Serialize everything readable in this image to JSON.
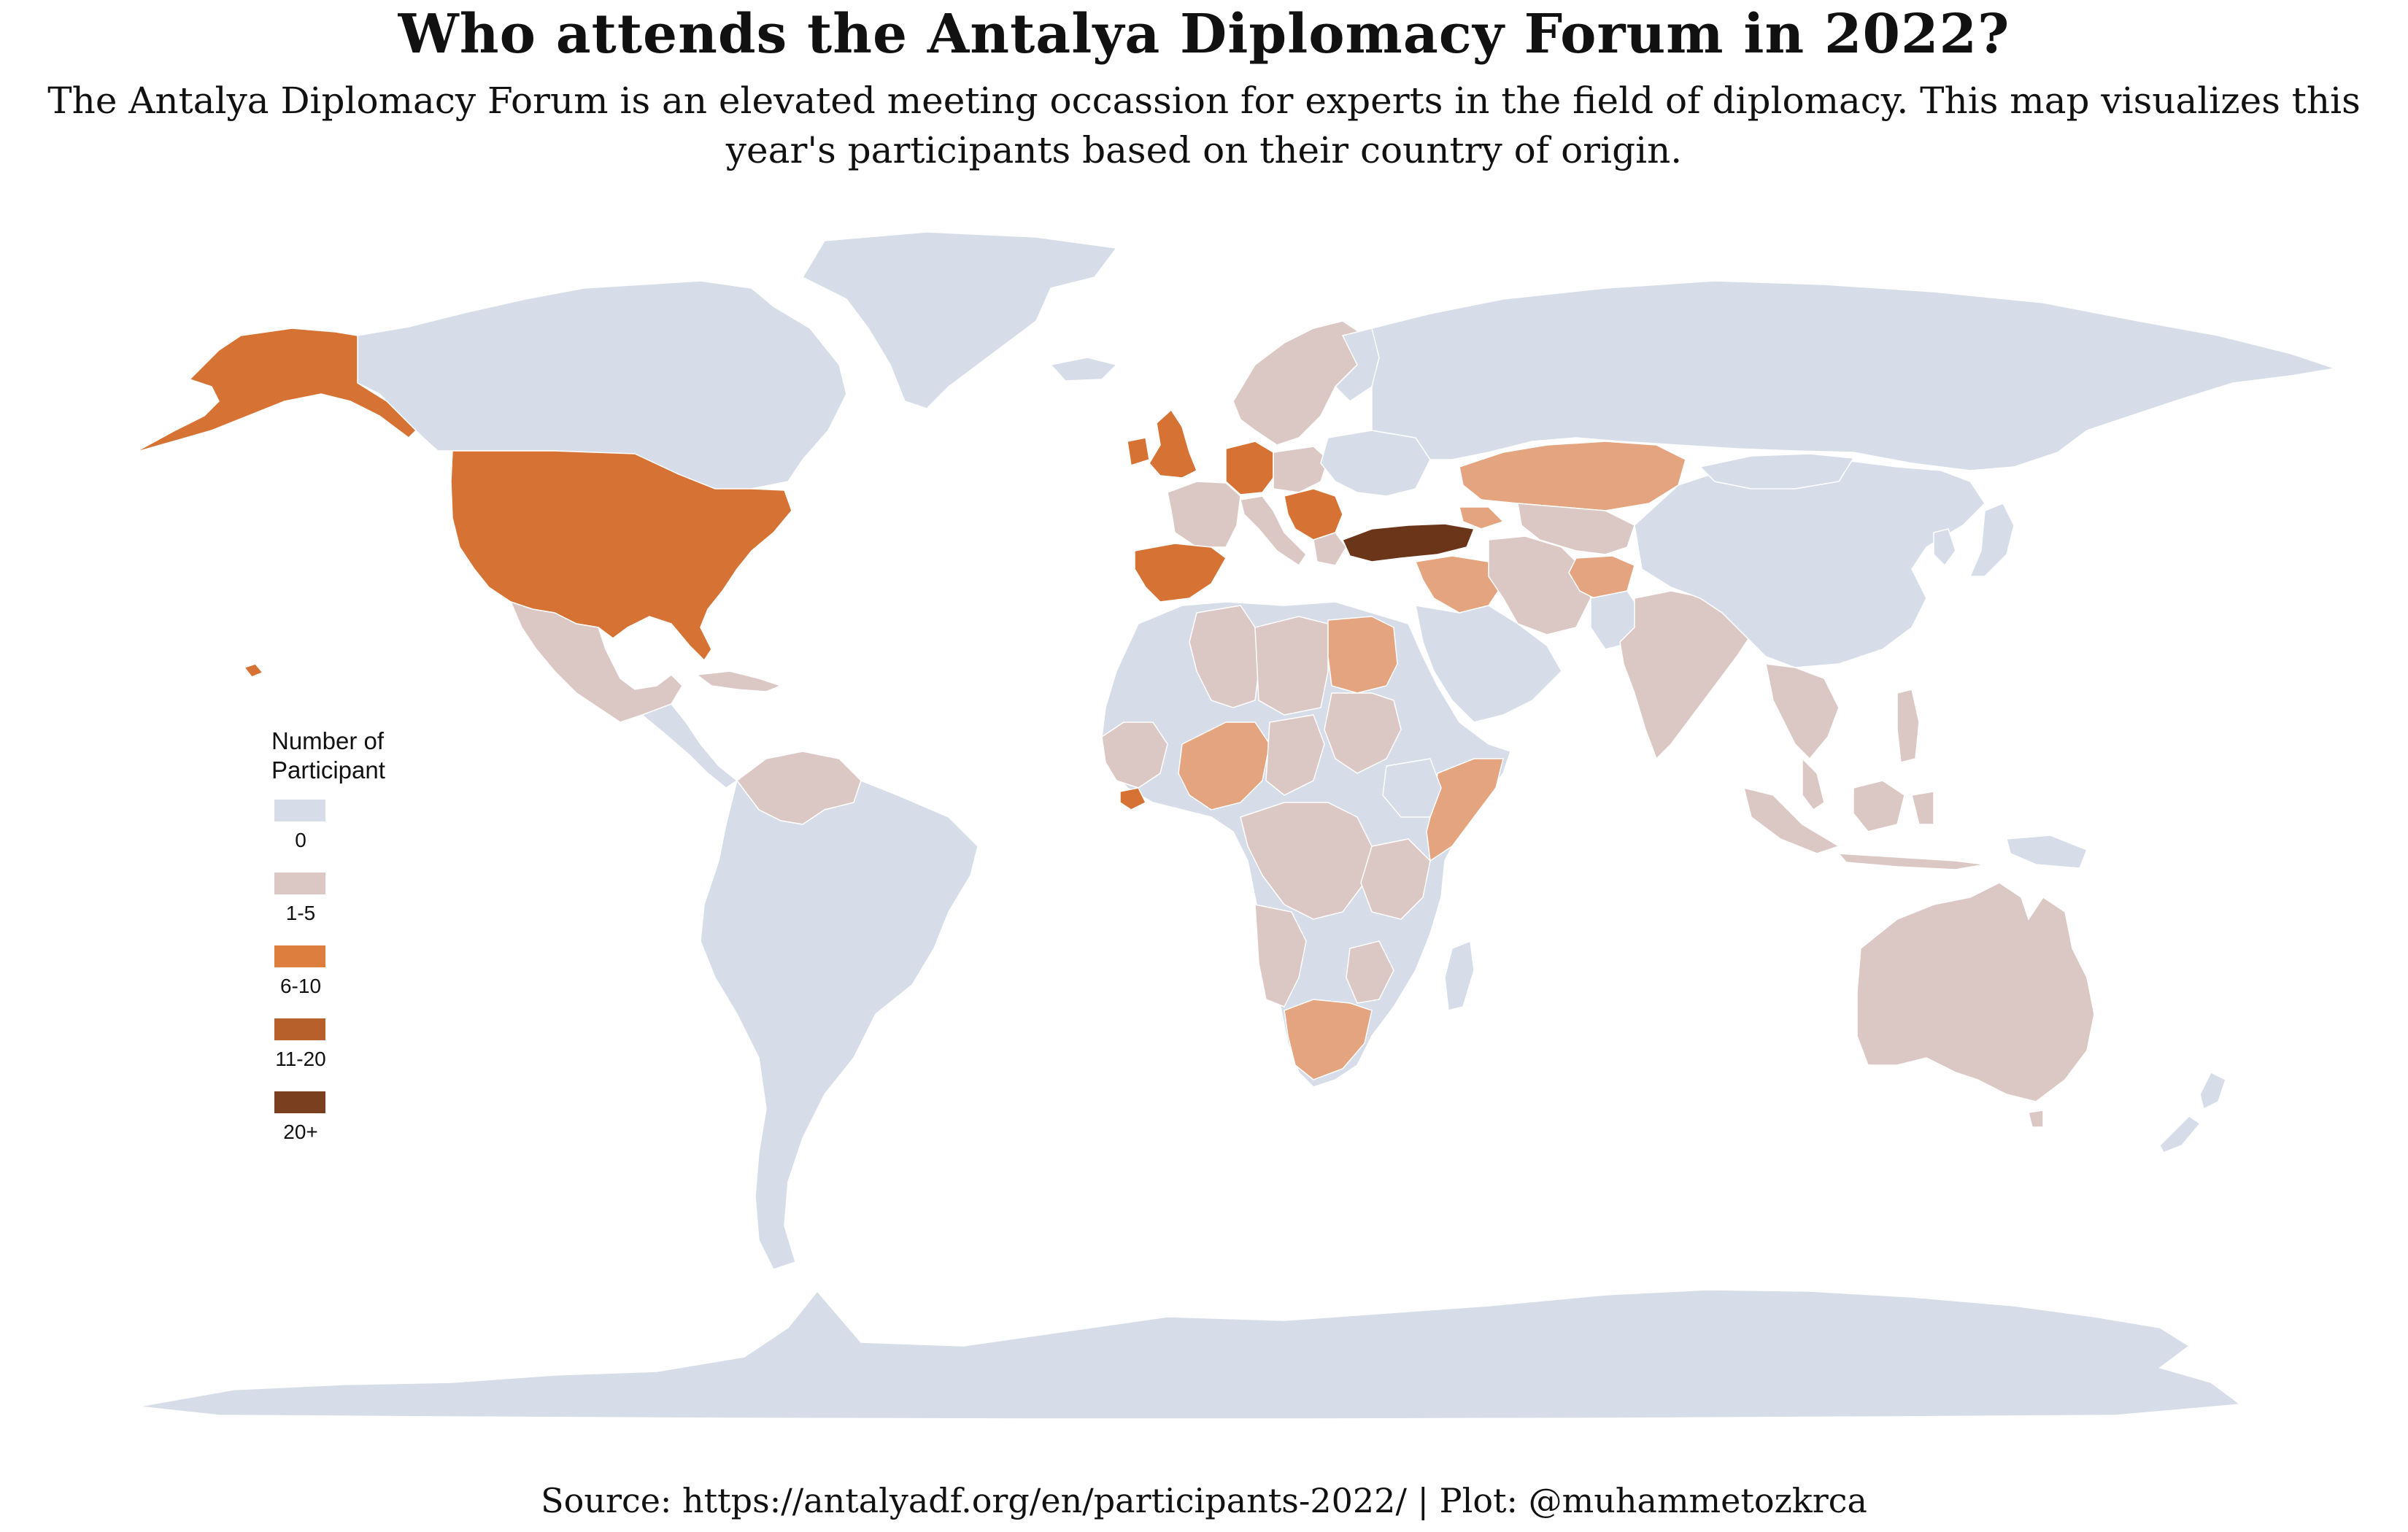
{
  "title": "Who attends the Antalya Diplomacy Forum in 2022?",
  "subtitle": "The Antalya Diplomacy Forum is an elevated meeting occassion for experts in the field of diplomacy. This map visualizes this year's participants based on their country of origin.",
  "source": "Source: https://antalyadf.org/en/participants-2022/ | Plot: @muhammetozkrca",
  "legend": {
    "title": "Number of Participant",
    "items": [
      {
        "label": "0",
        "color": "#d6dce8"
      },
      {
        "label": "1-5",
        "color": "#dbc8c5"
      },
      {
        "label": "6-10",
        "color": "#dd7e3f"
      },
      {
        "label": "11-20",
        "color": "#b8602c"
      },
      {
        "label": "20+",
        "color": "#7a3f1f"
      }
    ]
  },
  "colors": {
    "no_data": "#d6dce8",
    "c1_5": "#dbc8c5",
    "c1_5_warm": "#e3a47f",
    "c6_10": "#d67233",
    "c11_20": "#b8602c",
    "c20_plus": "#6b3519"
  },
  "chart_data": {
    "type": "choropleth",
    "legend_placement": "left",
    "categories": [
      "0",
      "1-5",
      "6-10",
      "11-20",
      "20+"
    ],
    "countries": [
      {
        "name": "Turkey",
        "category": "20+"
      },
      {
        "name": "United States",
        "category": "6-10"
      },
      {
        "name": "United Kingdom",
        "category": "6-10"
      },
      {
        "name": "Spain",
        "category": "6-10"
      },
      {
        "name": "Germany",
        "category": "6-10"
      },
      {
        "name": "Kazakhstan",
        "category": "1-5"
      },
      {
        "name": "Afghanistan",
        "category": "1-5"
      },
      {
        "name": "Egypt",
        "category": "1-5"
      },
      {
        "name": "South Africa",
        "category": "1-5"
      },
      {
        "name": "Somalia",
        "category": "1-5"
      },
      {
        "name": "Mexico",
        "category": "1-5"
      },
      {
        "name": "India",
        "category": "1-5"
      },
      {
        "name": "Australia",
        "category": "1-5"
      },
      {
        "name": "Iran",
        "category": "1-5"
      },
      {
        "name": "Algeria",
        "category": "1-5"
      },
      {
        "name": "Nigeria",
        "category": "1-5"
      },
      {
        "name": "Russia",
        "category": "0"
      },
      {
        "name": "China",
        "category": "0"
      },
      {
        "name": "Canada",
        "category": "0"
      },
      {
        "name": "Brazil",
        "category": "0"
      }
    ]
  }
}
